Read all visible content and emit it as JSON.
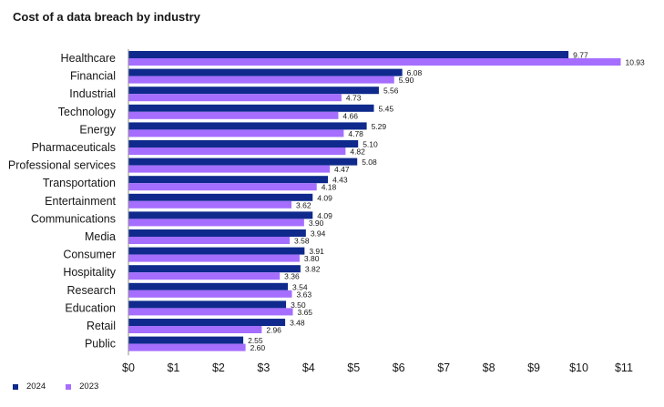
{
  "colors": {
    "s2024": "#0f2a8c",
    "s2023": "#a56eff",
    "axis": "#8d8d8d"
  },
  "chart_data": {
    "type": "bar",
    "orientation": "horizontal",
    "title": "Cost of a data breach by industry",
    "categories": [
      "Healthcare",
      "Financial",
      "Industrial",
      "Technology",
      "Energy",
      "Pharmaceuticals",
      "Professional services",
      "Transportation",
      "Entertainment",
      "Communications",
      "Media",
      "Consumer",
      "Hospitality",
      "Research",
      "Education",
      "Retail",
      "Public"
    ],
    "series": [
      {
        "name": "2024",
        "values": [
          9.77,
          6.08,
          5.56,
          5.45,
          5.29,
          5.1,
          5.08,
          4.43,
          4.09,
          4.09,
          3.94,
          3.91,
          3.82,
          3.54,
          3.5,
          3.48,
          2.55
        ]
      },
      {
        "name": "2023",
        "values": [
          10.93,
          5.9,
          4.73,
          4.66,
          4.78,
          4.82,
          4.47,
          4.18,
          3.62,
          3.9,
          3.58,
          3.8,
          3.36,
          3.63,
          3.65,
          2.96,
          2.6
        ]
      }
    ],
    "value_labels": {
      "2024": [
        "9.77",
        "6.08",
        "5.56",
        "5.45",
        "5.29",
        "5.10",
        "5.08",
        "4.43",
        "4.09",
        "4.09",
        "3.94",
        "3.91",
        "3.82",
        "3.54",
        "3.50",
        "3.48",
        "2.55"
      ],
      "2023": [
        "10.93",
        "5.90",
        "4.73",
        "4.66",
        "4.78",
        "4.82",
        "4.47",
        "4.18",
        "3.62",
        "3.90",
        "3.58",
        "3.80",
        "3.36",
        "3.63",
        "3.65",
        "2.96",
        "2.60"
      ]
    },
    "x_ticks": [
      "$0",
      "$1",
      "$2",
      "$3",
      "$4",
      "$5",
      "$6",
      "$7",
      "$8",
      "$9",
      "$10",
      "$11"
    ],
    "xlim": [
      0,
      11
    ],
    "grid": false,
    "legend_position": "bottom-left"
  }
}
